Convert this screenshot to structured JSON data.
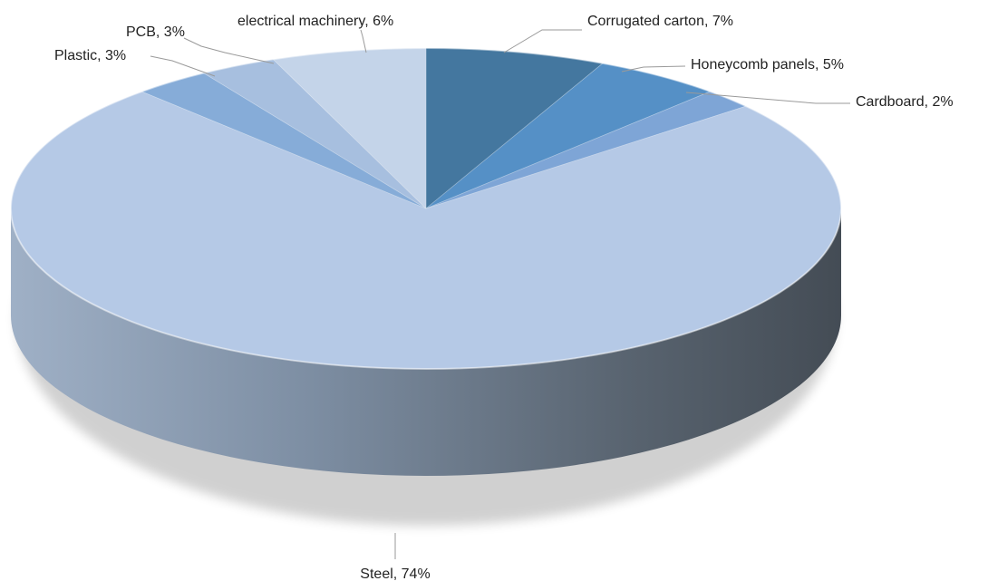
{
  "chart_data": {
    "type": "pie",
    "style": "3d",
    "title": "",
    "legend": "none",
    "slices": [
      {
        "label": "Corrugated carton",
        "value": 7,
        "display": "Corrugated carton, 7%",
        "color": "#44779f"
      },
      {
        "label": "Honeycomb panels",
        "value": 5,
        "display": "Honeycomb panels, 5%",
        "color": "#5590c6"
      },
      {
        "label": "Cardboard",
        "value": 2,
        "display": "Cardboard, 2%",
        "color": "#7ea5d6"
      },
      {
        "label": "Steel",
        "value": 74,
        "display": "Steel, 74%",
        "color": "#b5c9e6"
      },
      {
        "label": "Plastic",
        "value": 3,
        "display": "Plastic, 3%",
        "color": "#86acd8"
      },
      {
        "label": "PCB",
        "value": 3,
        "display": "PCB, 3%",
        "color": "#a7bfdf"
      },
      {
        "label": "electrical machinery",
        "value": 6,
        "display": "electrical machinery, 6%",
        "color": "#c4d4e9"
      }
    ]
  }
}
